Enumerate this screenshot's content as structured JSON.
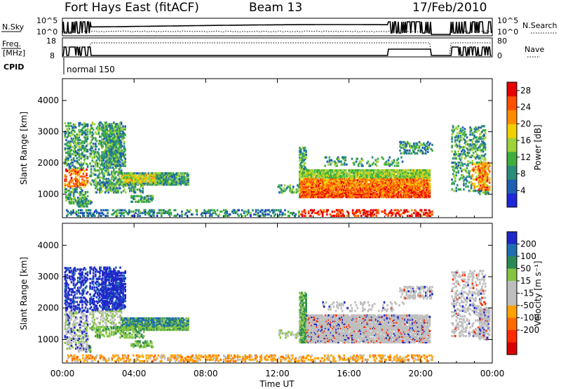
{
  "header": {
    "station": "Fort Hays East (fitACF)",
    "beam": "Beam 13",
    "date": "17/Feb/2010"
  },
  "summary_panels": {
    "nsky_label": "N.Sky",
    "nsearch_label": "N.Search",
    "freq_label_1": "Freq.",
    "freq_label_2": "[MHz]",
    "nave_label": "Nave",
    "cpid_label": "CPID",
    "cpid_value": "normal 150",
    "nsky_ticks": [
      "10^5",
      "10^0"
    ],
    "nsearch_ticks": [
      "10^5",
      "10^0"
    ],
    "freq_ticks": [
      "18",
      "8"
    ],
    "nave_ticks": [
      "80",
      "0"
    ]
  },
  "colors": {
    "power_scale": [
      "#1e28d8",
      "#1e5fb0",
      "#2a8c7a",
      "#3fae3c",
      "#9ed23a",
      "#f0d000",
      "#ff8c00",
      "#ff5000",
      "#e60000"
    ],
    "velocity_scale": [
      "#1e28c8",
      "#1f6fb0",
      "#2a8a55",
      "#86c440",
      "#bebebe",
      "#bebebe",
      "#ffa200",
      "#ff6a00",
      "#ff2a00",
      "#d80000"
    ]
  },
  "chart_data": [
    {
      "type": "heatmap",
      "name": "power",
      "ylabel": "Slant Range [km]",
      "yticks": [
        1000,
        2000,
        3000,
        4000
      ],
      "ylim": [
        250,
        4700
      ],
      "xlim": [
        0,
        24
      ],
      "xticks": [
        "00:00",
        "04:00",
        "08:00",
        "12:00",
        "16:00",
        "20:00",
        "00:00"
      ],
      "colorbar": {
        "label": "Power [dB]",
        "ticks": [
          4,
          8,
          12,
          16,
          20,
          24,
          28
        ],
        "range": [
          0,
          30
        ]
      }
    },
    {
      "type": "heatmap",
      "name": "velocity",
      "ylabel": "Slant Range [km]",
      "yticks": [
        1000,
        2000,
        3000,
        4000
      ],
      "ylim": [
        250,
        4700
      ],
      "xlim": [
        0,
        24
      ],
      "xticks": [
        "00:00",
        "04:00",
        "08:00",
        "12:00",
        "16:00",
        "20:00",
        "00:00"
      ],
      "xlabel": "Time UT",
      "colorbar": {
        "label": "Velocity [m s⁻¹]",
        "ticks": [
          200,
          100,
          50,
          15,
          -15,
          -50,
          -100,
          -200
        ]
      }
    }
  ]
}
